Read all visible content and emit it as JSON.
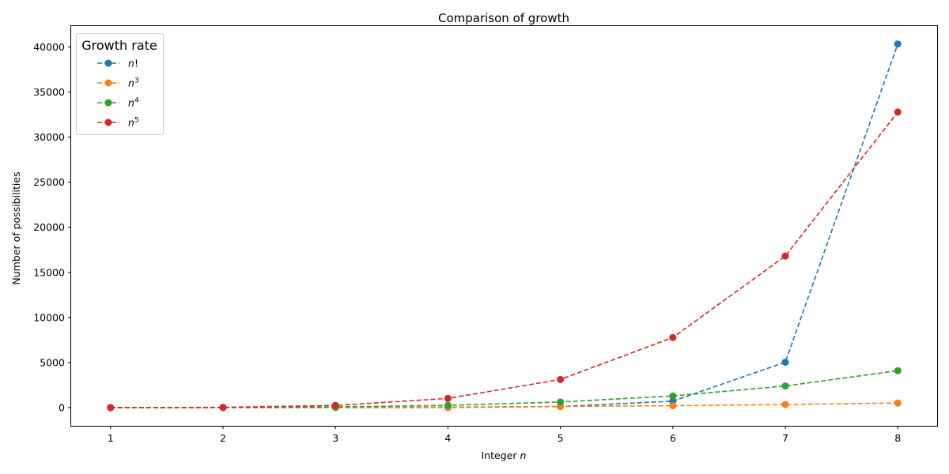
{
  "chart_data": {
    "type": "line",
    "title": "Comparison of growth",
    "xlabel": "Integer n",
    "ylabel": "Number of possibilities",
    "x": [
      1,
      2,
      3,
      4,
      5,
      6,
      7,
      8
    ],
    "xlim": [
      0.65,
      8.35
    ],
    "ylim": [
      -2015,
      42310
    ],
    "xticks": [
      "1",
      "2",
      "3",
      "4",
      "5",
      "6",
      "7",
      "8"
    ],
    "yticks": [
      "0",
      "5000",
      "10000",
      "15000",
      "20000",
      "25000",
      "30000",
      "35000",
      "40000"
    ],
    "grid": false,
    "legend": {
      "title": "Growth rate",
      "placement": "upper-left"
    },
    "series": [
      {
        "name": "n!",
        "base": "n",
        "sup": "",
        "suffix": "!",
        "color": "#1f77b4",
        "values": [
          1,
          2,
          6,
          24,
          120,
          720,
          5040,
          40320
        ]
      },
      {
        "name": "n^3",
        "base": "n",
        "sup": "3",
        "suffix": "",
        "color": "#ff7f0e",
        "values": [
          1,
          8,
          27,
          64,
          125,
          216,
          343,
          512
        ]
      },
      {
        "name": "n^4",
        "base": "n",
        "sup": "4",
        "suffix": "",
        "color": "#2ca02c",
        "values": [
          1,
          16,
          81,
          256,
          625,
          1296,
          2401,
          4096
        ]
      },
      {
        "name": "n^5",
        "base": "n",
        "sup": "5",
        "suffix": "",
        "color": "#d62728",
        "values": [
          1,
          32,
          243,
          1024,
          3125,
          7776,
          16807,
          32768
        ]
      }
    ]
  }
}
